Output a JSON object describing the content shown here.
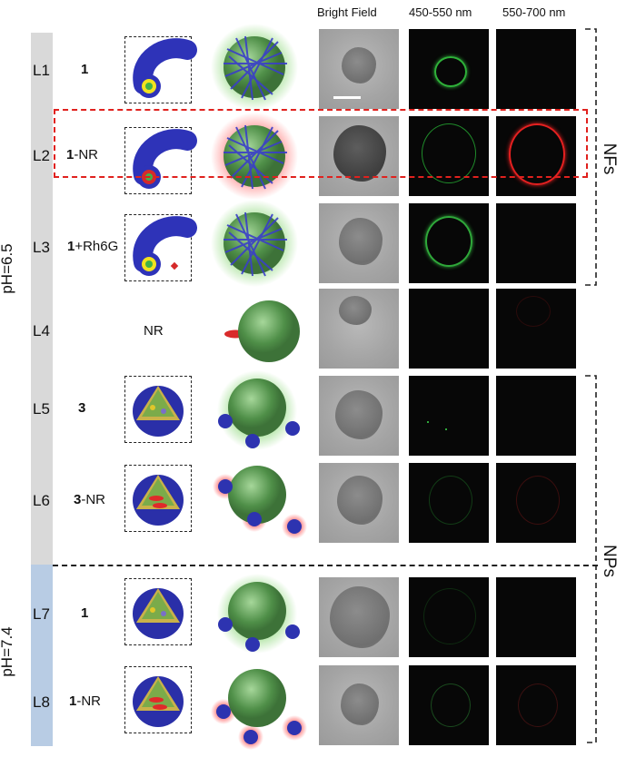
{
  "headers": {
    "bright_field": "Bright Field",
    "green_channel": "450-550 nm",
    "red_channel": "550-700 nm"
  },
  "rows": [
    {
      "label": "L1",
      "compound_bold": "1",
      "compound_rest": ""
    },
    {
      "label": "L2",
      "compound_bold": "1",
      "compound_rest": "-NR"
    },
    {
      "label": "L3",
      "compound_bold": "1",
      "compound_rest": "+Rh6G"
    },
    {
      "label": "L4",
      "compound_bold": "",
      "compound_rest": "NR"
    },
    {
      "label": "L5",
      "compound_bold": "3",
      "compound_rest": ""
    },
    {
      "label": "L6",
      "compound_bold": "3",
      "compound_rest": "-NR"
    },
    {
      "label": "L7",
      "compound_bold": "1",
      "compound_rest": ""
    },
    {
      "label": "L8",
      "compound_bold": "1",
      "compound_rest": "-NR"
    }
  ],
  "groups": {
    "ph_low": "pH=6.5",
    "ph_high": "pH=7.4",
    "nanofibers": "NFs",
    "nanoparticles": "NPs"
  },
  "colors": {
    "ph_low_bar": "#d9d9d9",
    "ph_high_bar": "#b8cce4",
    "highlight": "#e0211e",
    "fiber_blue": "#3a3ec8",
    "sphere_green": "#5f9e5a"
  }
}
